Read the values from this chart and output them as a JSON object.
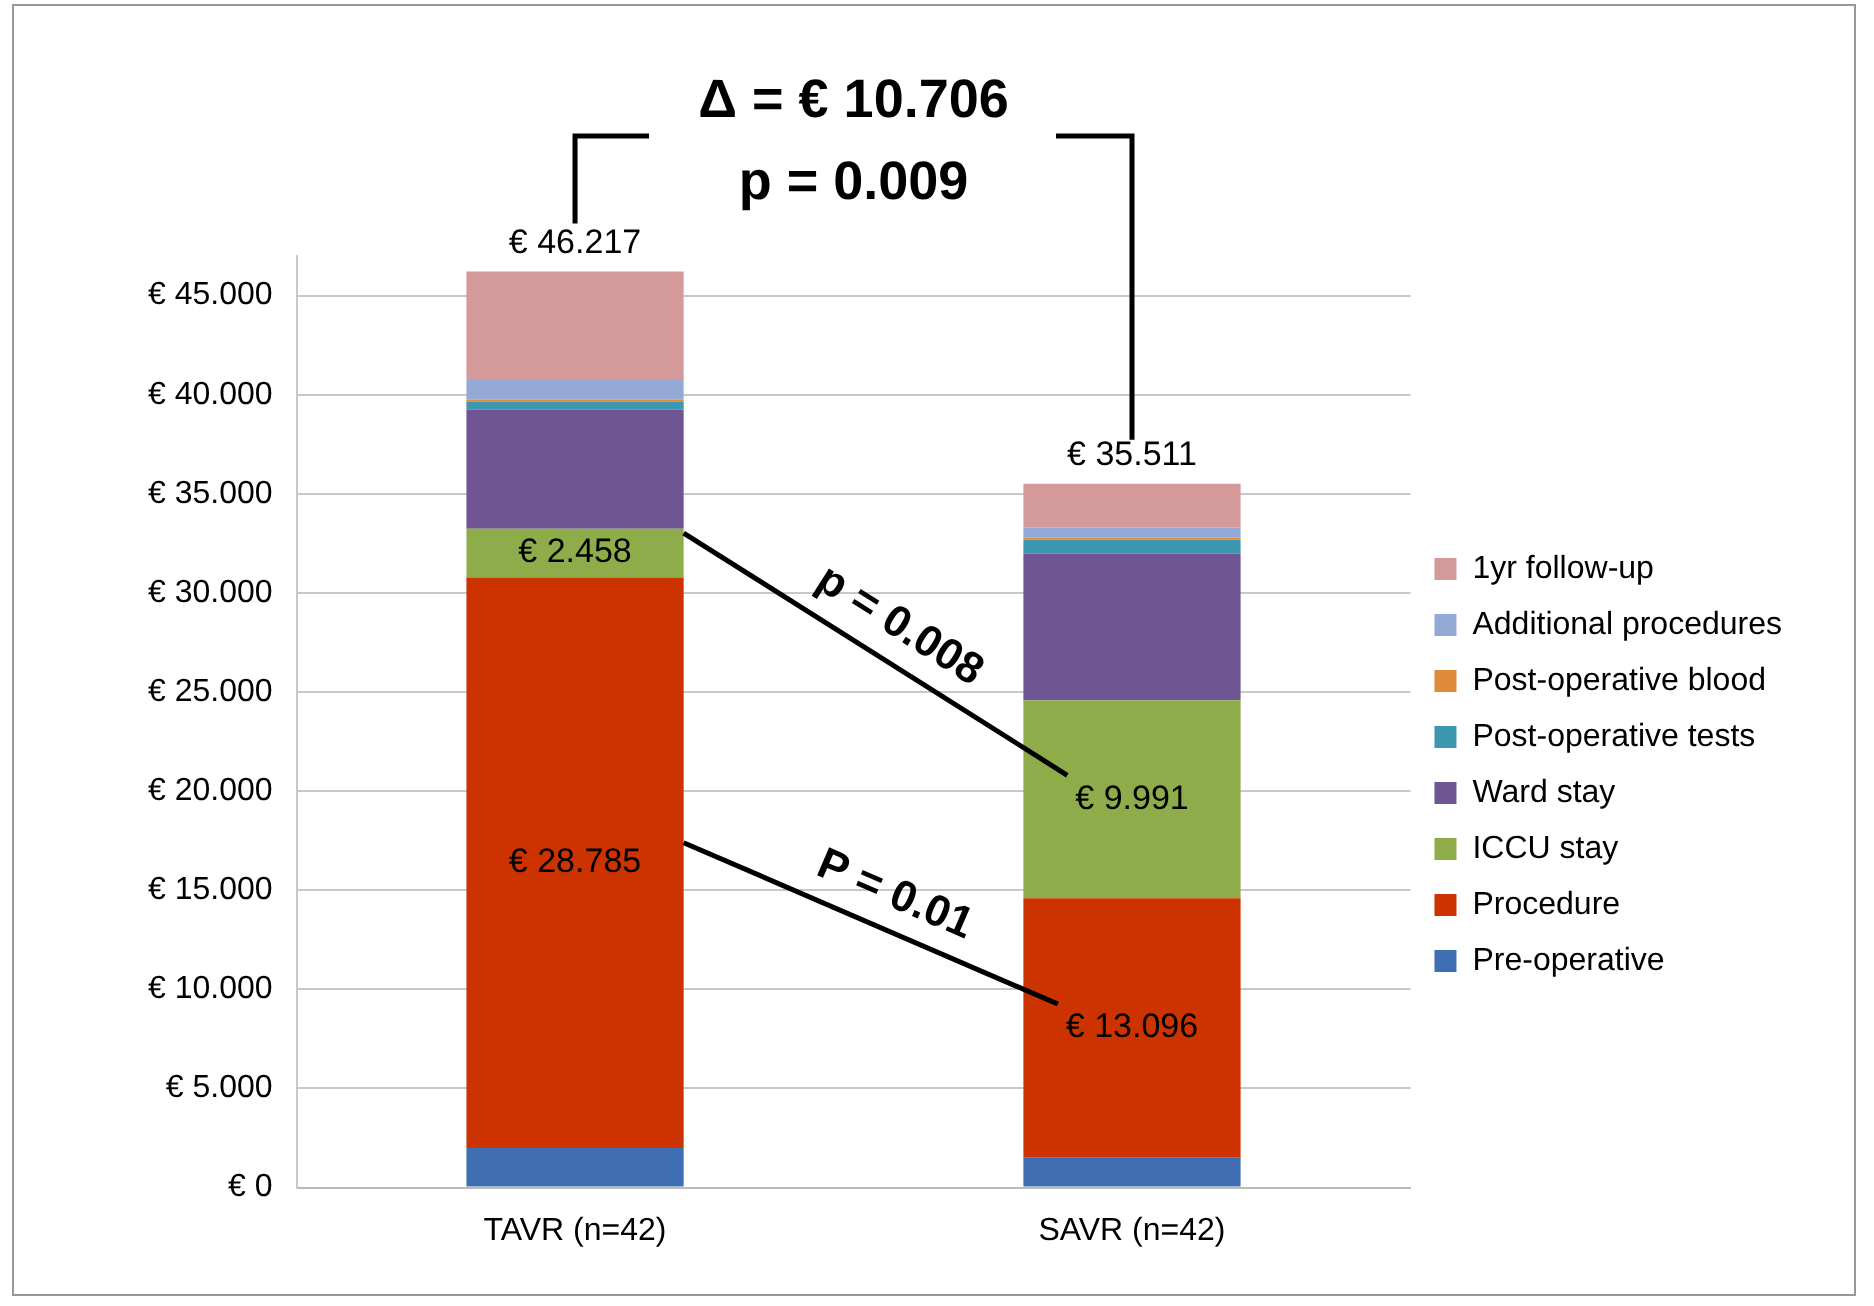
{
  "chart_data": {
    "type": "bar",
    "stacked": true,
    "categories": [
      "TAVR (n=42)",
      "SAVR (n=42)"
    ],
    "series": [
      {
        "name": "Pre-operative",
        "color": "#3f6fb2",
        "values": [
          2.0,
          1.5
        ]
      },
      {
        "name": "Procedure",
        "color": "#cc3300",
        "values": [
          28.785,
          13.096
        ],
        "value_labels": [
          "€ 28.785",
          "€ 13.096"
        ]
      },
      {
        "name": "ICCU stay",
        "color": "#8fac4a",
        "values": [
          2.458,
          9.991
        ],
        "value_labels": [
          "€ 2.458",
          "€ 9.991"
        ]
      },
      {
        "name": "Ward stay",
        "color": "#6f5594",
        "values": [
          6.0,
          7.4
        ]
      },
      {
        "name": "Post-operative tests",
        "color": "#3e97b0",
        "values": [
          0.4,
          0.7
        ]
      },
      {
        "name": "Post-operative blood",
        "color": "#e08a3c",
        "values": [
          0.1,
          0.1
        ]
      },
      {
        "name": "Additional procedures",
        "color": "#95a9d6",
        "values": [
          1.0,
          0.5
        ]
      },
      {
        "name": "1yr follow-up",
        "color": "#d49a9a",
        "values": [
          5.474,
          2.224
        ]
      }
    ],
    "totals": [
      "€ 46.217",
      "€ 35.511"
    ],
    "ylim": [
      0,
      47
    ],
    "yticks": [
      {
        "value": 0,
        "label": "€ 0"
      },
      {
        "value": 5,
        "label": "€ 5.000"
      },
      {
        "value": 10,
        "label": "€ 10.000"
      },
      {
        "value": 15,
        "label": "€ 15.000"
      },
      {
        "value": 20,
        "label": "€ 20.000"
      },
      {
        "value": 25,
        "label": "€ 25.000"
      },
      {
        "value": 30,
        "label": "€ 30.000"
      },
      {
        "value": 35,
        "label": "€ 35.000"
      },
      {
        "value": 40,
        "label": "€ 40.000"
      },
      {
        "value": 45,
        "label": "€ 45.000"
      }
    ],
    "grid": "y",
    "legend": "right",
    "annotations": [
      "Δ = € 10.706",
      "p = 0.009",
      "p = 0.008",
      "P = 0.01"
    ]
  }
}
